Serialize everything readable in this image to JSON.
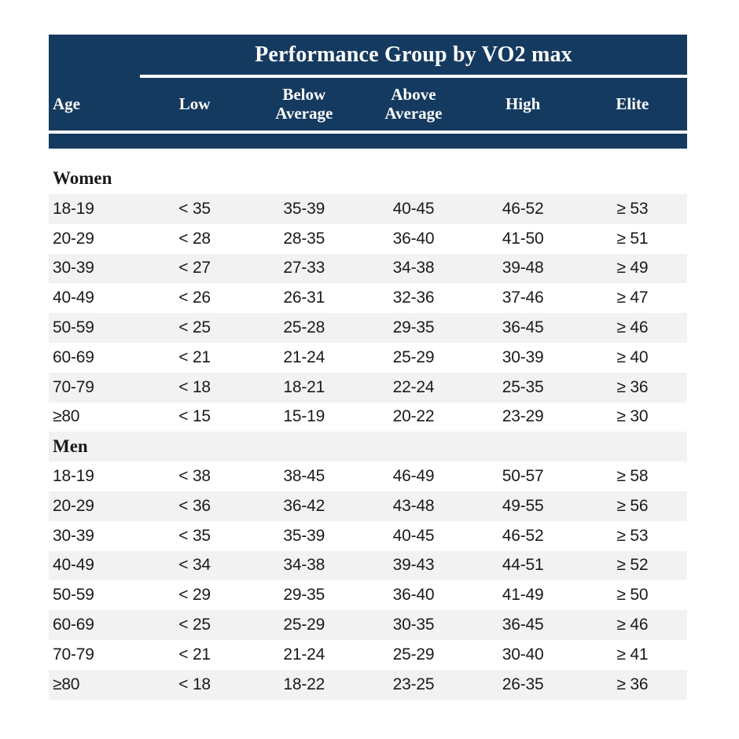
{
  "table": {
    "title": "Performance Group by VO2 max",
    "columns": [
      "Age",
      "Low",
      "Below\nAverage",
      "Above\nAverage",
      "High",
      "Elite"
    ],
    "sections": [
      {
        "label": "Women",
        "rows": [
          [
            "18-19",
            "< 35",
            "35-39",
            "40-45",
            "46-52",
            "≥ 53"
          ],
          [
            "20-29",
            "< 28",
            "28-35",
            "36-40",
            "41-50",
            "≥ 51"
          ],
          [
            "30-39",
            "< 27",
            "27-33",
            "34-38",
            "39-48",
            "≥ 49"
          ],
          [
            "40-49",
            "< 26",
            "26-31",
            "32-36",
            "37-46",
            "≥ 47"
          ],
          [
            "50-59",
            "< 25",
            "25-28",
            "29-35",
            "36-45",
            "≥ 46"
          ],
          [
            "60-69",
            "< 21",
            "21-24",
            "25-29",
            "30-39",
            "≥ 40"
          ],
          [
            "70-79",
            "< 18",
            "18-21",
            "22-24",
            "25-35",
            "≥ 36"
          ],
          [
            "≥80",
            "< 15",
            "15-19",
            "20-22",
            "23-29",
            "≥ 30"
          ]
        ]
      },
      {
        "label": "Men",
        "rows": [
          [
            "18-19",
            "< 38",
            "38-45",
            "46-49",
            "50-57",
            "≥ 58"
          ],
          [
            "20-29",
            "< 36",
            "36-42",
            "43-48",
            "49-55",
            "≥ 56"
          ],
          [
            "30-39",
            "< 35",
            "35-39",
            "40-45",
            "46-52",
            "≥ 53"
          ],
          [
            "40-49",
            "< 34",
            "34-38",
            "39-43",
            "44-51",
            "≥ 52"
          ],
          [
            "50-59",
            "< 29",
            "29-35",
            "36-40",
            "41-49",
            "≥ 50"
          ],
          [
            "60-69",
            "< 25",
            "25-29",
            "30-35",
            "36-45",
            "≥ 46"
          ],
          [
            "70-79",
            "< 21",
            "21-24",
            "25-29",
            "30-40",
            "≥ 41"
          ],
          [
            "≥80",
            "< 18",
            "18-22",
            "23-25",
            "26-35",
            "≥ 36"
          ]
        ]
      }
    ]
  },
  "colors": {
    "header_bg": "#153A60",
    "header_text": "#FFFFFF",
    "stripe_bg": "#F2F2F2",
    "body_text": "#1A1A1A"
  },
  "chart_data": {
    "type": "table",
    "title": "Performance Group by VO2 max",
    "columns": [
      "Age",
      "Low",
      "Below Average",
      "Above Average",
      "High",
      "Elite"
    ],
    "groups": [
      {
        "name": "Women",
        "rows": [
          {
            "age": "18-19",
            "low": "< 35",
            "below_average": "35-39",
            "above_average": "40-45",
            "high": "46-52",
            "elite": "≥ 53"
          },
          {
            "age": "20-29",
            "low": "< 28",
            "below_average": "28-35",
            "above_average": "36-40",
            "high": "41-50",
            "elite": "≥ 51"
          },
          {
            "age": "30-39",
            "low": "< 27",
            "below_average": "27-33",
            "above_average": "34-38",
            "high": "39-48",
            "elite": "≥ 49"
          },
          {
            "age": "40-49",
            "low": "< 26",
            "below_average": "26-31",
            "above_average": "32-36",
            "high": "37-46",
            "elite": "≥ 47"
          },
          {
            "age": "50-59",
            "low": "< 25",
            "below_average": "25-28",
            "above_average": "29-35",
            "high": "36-45",
            "elite": "≥ 46"
          },
          {
            "age": "60-69",
            "low": "< 21",
            "below_average": "21-24",
            "above_average": "25-29",
            "high": "30-39",
            "elite": "≥ 40"
          },
          {
            "age": "70-79",
            "low": "< 18",
            "below_average": "18-21",
            "above_average": "22-24",
            "high": "25-35",
            "elite": "≥ 36"
          },
          {
            "age": "≥80",
            "low": "< 15",
            "below_average": "15-19",
            "above_average": "20-22",
            "high": "23-29",
            "elite": "≥ 30"
          }
        ]
      },
      {
        "name": "Men",
        "rows": [
          {
            "age": "18-19",
            "low": "< 38",
            "below_average": "38-45",
            "above_average": "46-49",
            "high": "50-57",
            "elite": "≥ 58"
          },
          {
            "age": "20-29",
            "low": "< 36",
            "below_average": "36-42",
            "above_average": "43-48",
            "high": "49-55",
            "elite": "≥ 56"
          },
          {
            "age": "30-39",
            "low": "< 35",
            "below_average": "35-39",
            "above_average": "40-45",
            "high": "46-52",
            "elite": "≥ 53"
          },
          {
            "age": "40-49",
            "low": "< 34",
            "below_average": "34-38",
            "above_average": "39-43",
            "high": "44-51",
            "elite": "≥ 52"
          },
          {
            "age": "50-59",
            "low": "< 29",
            "below_average": "29-35",
            "above_average": "36-40",
            "high": "41-49",
            "elite": "≥ 50"
          },
          {
            "age": "60-69",
            "low": "< 25",
            "below_average": "25-29",
            "above_average": "30-35",
            "high": "36-45",
            "elite": "≥ 46"
          },
          {
            "age": "70-79",
            "low": "< 21",
            "below_average": "21-24",
            "above_average": "25-29",
            "high": "30-40",
            "elite": "≥ 41"
          },
          {
            "age": "≥80",
            "low": "< 18",
            "below_average": "18-22",
            "above_average": "23-25",
            "high": "26-35",
            "elite": "≥ 36"
          }
        ]
      }
    ],
    "layout": {
      "striped_rows": true,
      "header_style": "navy-banner",
      "grid": "off"
    }
  }
}
